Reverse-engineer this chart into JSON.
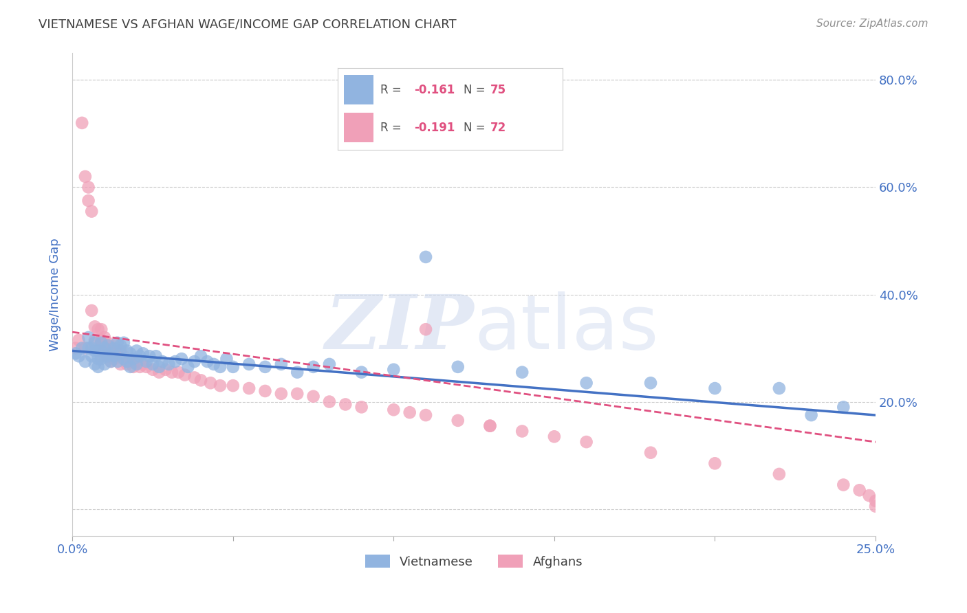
{
  "title": "VIETNAMESE VS AFGHAN WAGE/INCOME GAP CORRELATION CHART",
  "source": "Source: ZipAtlas.com",
  "ylabel": "Wage/Income Gap",
  "xlim": [
    0.0,
    0.25
  ],
  "ylim": [
    -0.05,
    0.85
  ],
  "yticks": [
    0.0,
    0.2,
    0.4,
    0.6,
    0.8
  ],
  "ytick_labels": [
    "",
    "20.0%",
    "40.0%",
    "60.0%",
    "80.0%"
  ],
  "xticks": [
    0.0,
    0.05,
    0.1,
    0.15,
    0.2,
    0.25
  ],
  "xtick_labels": [
    "0.0%",
    "",
    "",
    "",
    "",
    "25.0%"
  ],
  "watermark_zip": "ZIP",
  "watermark_atlas": "atlas",
  "color_vietnamese": "#91b4e0",
  "color_afghan": "#f0a0b8",
  "color_trendline_vietnamese": "#4472c4",
  "color_trendline_afghan": "#e05080",
  "title_color": "#404040",
  "axis_label_color": "#4472c4",
  "tick_color": "#4472c4",
  "source_color": "#909090",
  "viet_x": [
    0.001,
    0.002,
    0.003,
    0.004,
    0.005,
    0.005,
    0.006,
    0.006,
    0.007,
    0.007,
    0.007,
    0.008,
    0.008,
    0.008,
    0.009,
    0.009,
    0.009,
    0.01,
    0.01,
    0.01,
    0.011,
    0.011,
    0.012,
    0.012,
    0.013,
    0.013,
    0.014,
    0.014,
    0.015,
    0.015,
    0.016,
    0.016,
    0.017,
    0.017,
    0.018,
    0.018,
    0.019,
    0.02,
    0.02,
    0.021,
    0.022,
    0.023,
    0.024,
    0.025,
    0.026,
    0.027,
    0.028,
    0.03,
    0.032,
    0.034,
    0.036,
    0.038,
    0.04,
    0.042,
    0.044,
    0.046,
    0.048,
    0.05,
    0.055,
    0.06,
    0.065,
    0.07,
    0.075,
    0.08,
    0.09,
    0.1,
    0.11,
    0.12,
    0.14,
    0.16,
    0.18,
    0.2,
    0.22,
    0.23,
    0.24
  ],
  "viet_y": [
    0.29,
    0.285,
    0.3,
    0.275,
    0.3,
    0.32,
    0.285,
    0.3,
    0.295,
    0.31,
    0.27,
    0.28,
    0.295,
    0.265,
    0.28,
    0.295,
    0.31,
    0.27,
    0.285,
    0.3,
    0.285,
    0.305,
    0.29,
    0.275,
    0.3,
    0.285,
    0.31,
    0.275,
    0.29,
    0.305,
    0.28,
    0.31,
    0.295,
    0.275,
    0.29,
    0.265,
    0.28,
    0.295,
    0.27,
    0.285,
    0.29,
    0.275,
    0.285,
    0.27,
    0.285,
    0.265,
    0.275,
    0.27,
    0.275,
    0.28,
    0.265,
    0.275,
    0.285,
    0.275,
    0.27,
    0.265,
    0.28,
    0.265,
    0.27,
    0.265,
    0.27,
    0.255,
    0.265,
    0.27,
    0.255,
    0.26,
    0.47,
    0.265,
    0.255,
    0.235,
    0.235,
    0.225,
    0.225,
    0.175,
    0.19
  ],
  "afghan_x": [
    0.001,
    0.002,
    0.003,
    0.004,
    0.004,
    0.005,
    0.005,
    0.006,
    0.006,
    0.007,
    0.007,
    0.008,
    0.008,
    0.009,
    0.009,
    0.009,
    0.01,
    0.01,
    0.011,
    0.011,
    0.012,
    0.012,
    0.013,
    0.013,
    0.014,
    0.015,
    0.015,
    0.016,
    0.017,
    0.018,
    0.019,
    0.02,
    0.021,
    0.022,
    0.023,
    0.025,
    0.027,
    0.029,
    0.031,
    0.033,
    0.035,
    0.038,
    0.04,
    0.043,
    0.046,
    0.05,
    0.055,
    0.06,
    0.065,
    0.07,
    0.075,
    0.08,
    0.085,
    0.09,
    0.1,
    0.105,
    0.11,
    0.12,
    0.13,
    0.14,
    0.15,
    0.16,
    0.18,
    0.2,
    0.22,
    0.24,
    0.245,
    0.248,
    0.25,
    0.25,
    0.11,
    0.13
  ],
  "afghan_y": [
    0.3,
    0.315,
    0.72,
    0.62,
    0.3,
    0.6,
    0.575,
    0.555,
    0.37,
    0.34,
    0.315,
    0.335,
    0.295,
    0.335,
    0.315,
    0.285,
    0.32,
    0.295,
    0.31,
    0.285,
    0.3,
    0.275,
    0.305,
    0.28,
    0.29,
    0.295,
    0.27,
    0.285,
    0.27,
    0.275,
    0.265,
    0.275,
    0.265,
    0.27,
    0.265,
    0.26,
    0.255,
    0.26,
    0.255,
    0.255,
    0.25,
    0.245,
    0.24,
    0.235,
    0.23,
    0.23,
    0.225,
    0.22,
    0.215,
    0.215,
    0.21,
    0.2,
    0.195,
    0.19,
    0.185,
    0.18,
    0.175,
    0.165,
    0.155,
    0.145,
    0.135,
    0.125,
    0.105,
    0.085,
    0.065,
    0.045,
    0.035,
    0.025,
    0.015,
    0.005,
    0.335,
    0.155
  ],
  "viet_trend_x": [
    0.0,
    0.25
  ],
  "viet_trend_y": [
    0.295,
    0.175
  ],
  "afghan_trend_x": [
    0.0,
    0.25
  ],
  "afghan_trend_y": [
    0.33,
    0.125
  ]
}
